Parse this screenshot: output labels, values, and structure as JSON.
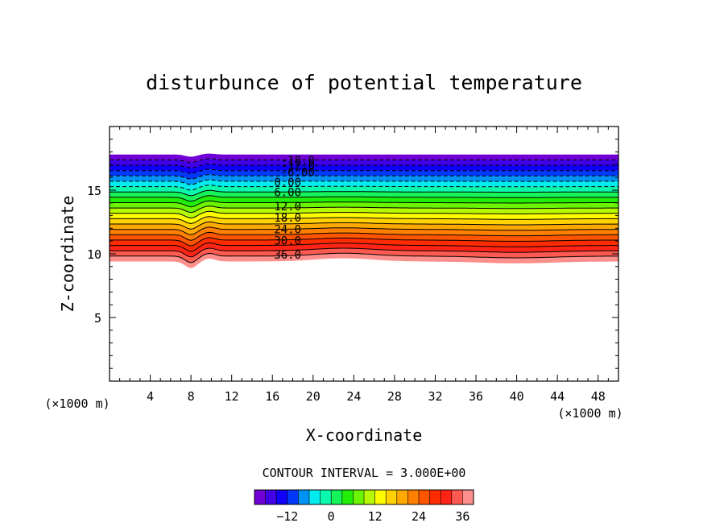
{
  "chart_data": {
    "type": "contour",
    "title": "disturbunce of potential temperature",
    "xlabel": "X-coordinate",
    "ylabel": "Z-coordinate",
    "x_unit": "(×1000 m)",
    "z_unit": "(×1000 m)",
    "xlim": [
      0,
      50
    ],
    "ylim": [
      0,
      20
    ],
    "x_ticks": [
      4,
      8,
      12,
      16,
      20,
      24,
      28,
      32,
      36,
      40,
      44,
      48
    ],
    "y_ticks": [
      5,
      10,
      15
    ],
    "contour_interval_text": "CONTOUR INTERVAL = 3.000E+00",
    "contour_interval": 3.0,
    "level_range": [
      -21,
      39
    ],
    "labeled_contours": [
      {
        "text": "-18.0",
        "value": -18.0,
        "x": 18.5,
        "z": 17.4
      },
      {
        "text": "-12.0",
        "value": -12.0,
        "x": 18.5,
        "z": 17.0
      },
      {
        "text": "-6.00",
        "value": -6.0,
        "x": 18.5,
        "z": 16.5
      },
      {
        "text": "0.00",
        "value": 0.0,
        "x": 17.5,
        "z": 15.7
      },
      {
        "text": "6.00",
        "value": 6.0,
        "x": 17.5,
        "z": 14.9
      },
      {
        "text": "12.0",
        "value": 12.0,
        "x": 17.5,
        "z": 13.8
      },
      {
        "text": "18.0",
        "value": 18.0,
        "x": 17.5,
        "z": 12.9
      },
      {
        "text": "24.0",
        "value": 24.0,
        "x": 17.5,
        "z": 12.0
      },
      {
        "text": "30.0",
        "value": 30.0,
        "x": 17.5,
        "z": 11.1
      },
      {
        "text": "36.0",
        "value": 36.0,
        "x": 17.5,
        "z": 10.0
      }
    ],
    "colorbar_ticks": [
      -12,
      0,
      12,
      24,
      36
    ],
    "colorbar_tick_labels": [
      "−12",
      "0",
      "12",
      "24",
      "36"
    ],
    "colors": {
      "purple": "#8800cc",
      "blue": "#0000ff",
      "cyan": "#00ffee",
      "green": "#22ee00",
      "yellow": "#ffff00",
      "orange": "#ff8800",
      "red": "#ff1100",
      "pink": "#ffaaaa"
    }
  }
}
